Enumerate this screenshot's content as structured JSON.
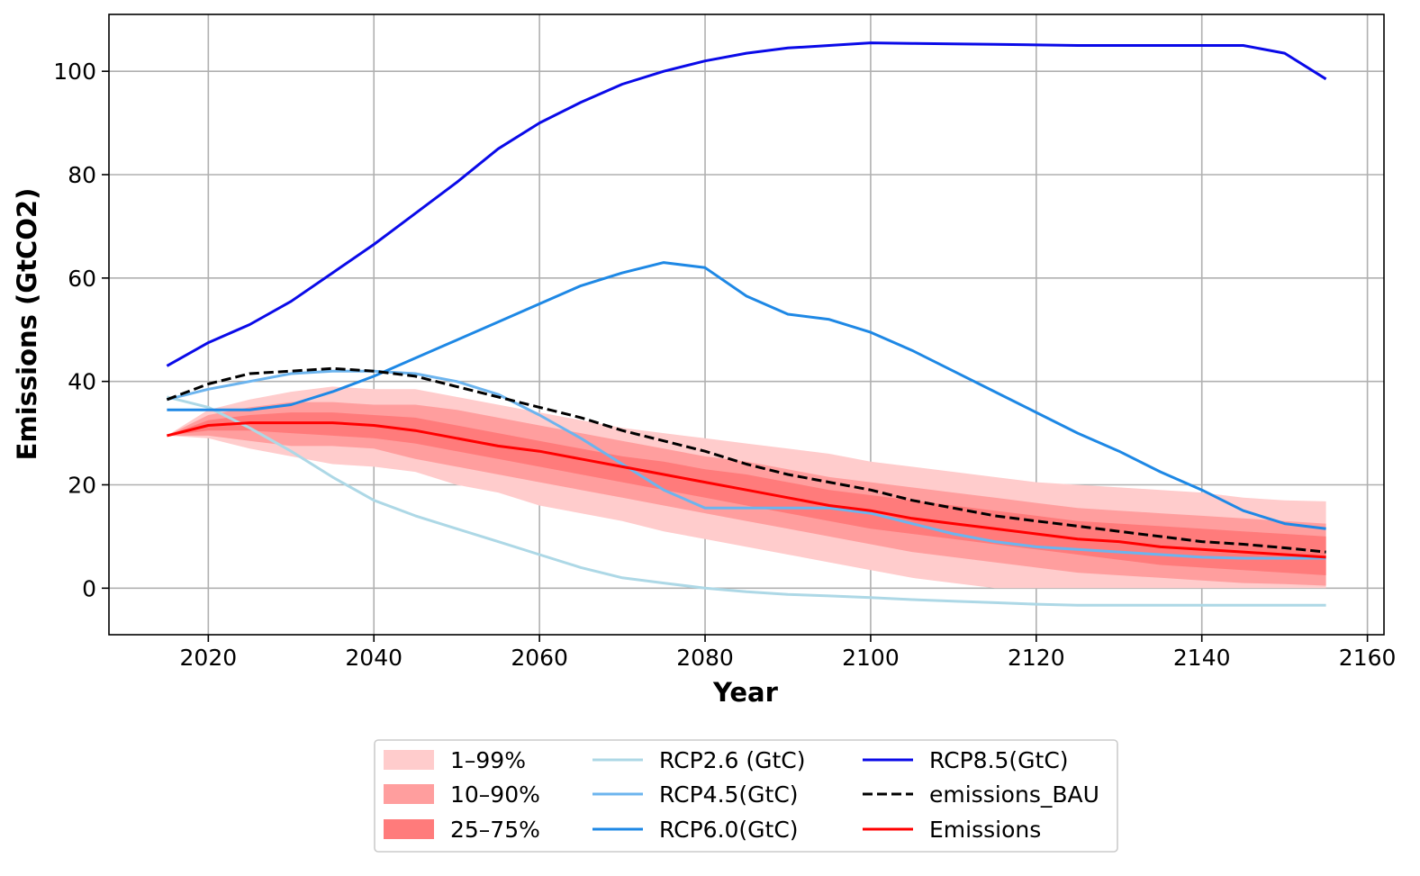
{
  "chart_data": {
    "type": "line",
    "title": "",
    "xlabel": "Year",
    "ylabel": "Emissions (GtCO2)",
    "xlim": [
      2008,
      2162
    ],
    "ylim": [
      -9,
      111
    ],
    "xticks": [
      2020,
      2040,
      2060,
      2080,
      2100,
      2120,
      2140,
      2160
    ],
    "yticks": [
      0,
      20,
      40,
      60,
      80,
      100
    ],
    "grid": true,
    "legend_position": "below plot, centered, 3 columns",
    "x": [
      2015,
      2020,
      2025,
      2030,
      2035,
      2040,
      2045,
      2050,
      2055,
      2060,
      2065,
      2070,
      2075,
      2080,
      2085,
      2090,
      2095,
      2100,
      2105,
      2110,
      2115,
      2120,
      2125,
      2130,
      2135,
      2140,
      2145,
      2150,
      2155
    ],
    "bands": [
      {
        "name": "1–99%",
        "color": "#ffcccc",
        "lower": [
          29.5,
          29.0,
          27.0,
          25.5,
          24.0,
          23.5,
          22.5,
          20.0,
          18.5,
          16.0,
          14.5,
          13.0,
          11.0,
          9.5,
          8.0,
          6.5,
          5.0,
          3.5,
          2.0,
          1.0,
          0.0,
          0.0,
          0.0,
          0.0,
          0.0,
          0.0,
          0.0,
          0.0,
          0.0
        ],
        "upper": [
          29.5,
          34.5,
          36.5,
          38.0,
          39.0,
          38.5,
          38.5,
          37.0,
          35.5,
          34.0,
          32.5,
          31.0,
          30.0,
          29.0,
          28.0,
          27.0,
          26.0,
          24.5,
          23.5,
          22.5,
          21.5,
          20.5,
          20.0,
          19.5,
          19.0,
          18.5,
          17.5,
          17.0,
          16.8
        ]
      },
      {
        "name": "10–90%",
        "color": "#ff9e9e",
        "lower": [
          29.5,
          29.5,
          28.5,
          27.5,
          27.5,
          27.0,
          25.0,
          23.5,
          22.0,
          20.5,
          19.0,
          17.5,
          16.0,
          14.5,
          13.0,
          11.5,
          10.0,
          8.5,
          7.0,
          6.0,
          5.0,
          4.0,
          3.0,
          2.5,
          2.0,
          1.5,
          1.0,
          0.8,
          0.5
        ],
        "upper": [
          29.5,
          33.5,
          35.0,
          36.0,
          36.0,
          35.5,
          35.5,
          34.5,
          33.0,
          31.5,
          30.0,
          28.5,
          27.0,
          25.5,
          24.5,
          23.0,
          21.5,
          20.5,
          19.5,
          18.5,
          17.5,
          16.5,
          15.5,
          15.0,
          14.5,
          14.0,
          13.5,
          13.0,
          12.5
        ]
      },
      {
        "name": "25–75%",
        "color": "#ff7b7b",
        "lower": [
          29.5,
          30.5,
          30.5,
          30.0,
          29.5,
          29.0,
          28.0,
          26.5,
          25.0,
          23.5,
          22.0,
          20.5,
          19.0,
          17.5,
          16.0,
          14.5,
          13.0,
          11.5,
          10.5,
          9.5,
          8.5,
          7.5,
          6.5,
          5.5,
          4.5,
          4.0,
          3.5,
          3.0,
          2.5
        ],
        "upper": [
          29.5,
          32.5,
          33.5,
          34.0,
          34.0,
          33.5,
          33.0,
          31.5,
          30.0,
          28.5,
          27.0,
          25.5,
          24.5,
          23.0,
          22.0,
          20.5,
          19.0,
          18.0,
          17.0,
          16.0,
          15.0,
          14.0,
          13.0,
          12.5,
          12.0,
          11.5,
          11.0,
          10.5,
          10.0
        ]
      }
    ],
    "series": [
      {
        "name": "RCP2.6 (GtC)",
        "color": "#add8e6",
        "dash": false,
        "values": [
          37.0,
          35.0,
          31.0,
          26.5,
          21.5,
          17.0,
          14.0,
          11.5,
          9.0,
          6.5,
          4.0,
          2.0,
          1.0,
          0.0,
          -0.7,
          -1.2,
          -1.5,
          -1.8,
          -2.2,
          -2.5,
          -2.8,
          -3.1,
          -3.3,
          -3.3,
          -3.3,
          -3.3,
          -3.3,
          -3.3,
          -3.3
        ]
      },
      {
        "name": "RCP4.5(GtC)",
        "color": "#6cb4ee",
        "dash": false,
        "values": [
          36.5,
          38.5,
          40.0,
          41.5,
          42.0,
          42.0,
          41.5,
          40.0,
          37.5,
          33.5,
          29.0,
          24.0,
          19.0,
          15.5,
          15.5,
          15.5,
          15.5,
          14.5,
          12.5,
          10.5,
          9.0,
          8.0,
          7.5,
          7.0,
          6.5,
          6.0,
          5.8,
          5.8,
          5.8
        ]
      },
      {
        "name": "RCP6.0(GtC)",
        "color": "#1e88e5",
        "dash": false,
        "values": [
          34.5,
          34.5,
          34.5,
          35.5,
          38.0,
          41.0,
          44.5,
          48.0,
          51.5,
          55.0,
          58.5,
          61.0,
          63.0,
          62.0,
          56.5,
          53.0,
          52.0,
          49.5,
          46.0,
          42.0,
          38.0,
          34.0,
          30.0,
          26.5,
          22.5,
          19.0,
          15.0,
          12.5,
          11.5
        ]
      },
      {
        "name": "RCP8.5(GtC)",
        "color": "#0a0ae8",
        "dash": false,
        "values": [
          43.0,
          47.5,
          51.0,
          55.5,
          61.0,
          66.5,
          72.5,
          78.5,
          85.0,
          90.0,
          94.0,
          97.5,
          100.0,
          102.0,
          103.5,
          104.5,
          105.0,
          105.5,
          105.4,
          105.3,
          105.2,
          105.1,
          105.0,
          105.0,
          105.0,
          105.0,
          105.0,
          103.5,
          98.5
        ]
      },
      {
        "name": "emissions_BAU",
        "color": "#000000",
        "dash": true,
        "values": [
          36.5,
          39.5,
          41.5,
          42.0,
          42.5,
          42.0,
          41.0,
          39.0,
          37.0,
          35.0,
          33.0,
          30.5,
          28.5,
          26.5,
          24.0,
          22.0,
          20.5,
          19.0,
          17.0,
          15.5,
          14.0,
          13.0,
          12.0,
          11.0,
          10.0,
          9.0,
          8.5,
          7.8,
          7.0
        ]
      },
      {
        "name": "Emissions",
        "color": "#ff0000",
        "dash": false,
        "values": [
          29.5,
          31.5,
          32.0,
          32.0,
          32.0,
          31.5,
          30.5,
          29.0,
          27.5,
          26.5,
          25.0,
          23.5,
          22.0,
          20.5,
          19.0,
          17.5,
          16.0,
          15.0,
          13.5,
          12.5,
          11.5,
          10.5,
          9.5,
          9.0,
          8.0,
          7.5,
          7.0,
          6.5,
          6.0
        ]
      }
    ],
    "legend": [
      [
        "1–99%",
        "10–90%",
        "25–75%"
      ],
      [
        "RCP2.6 (GtC)",
        "RCP4.5(GtC)",
        "RCP6.0(GtC)"
      ],
      [
        "RCP8.5(GtC)",
        "emissions_BAU",
        "Emissions"
      ]
    ]
  }
}
